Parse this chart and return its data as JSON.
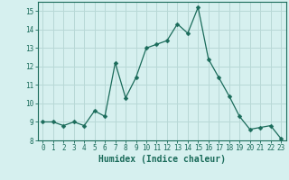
{
  "x": [
    0,
    1,
    2,
    3,
    4,
    5,
    6,
    7,
    8,
    9,
    10,
    11,
    12,
    13,
    14,
    15,
    16,
    17,
    18,
    19,
    20,
    21,
    22,
    23
  ],
  "y": [
    9.0,
    9.0,
    8.8,
    9.0,
    8.8,
    9.6,
    9.3,
    12.2,
    10.3,
    11.4,
    13.0,
    13.2,
    13.4,
    14.3,
    13.8,
    15.2,
    12.4,
    11.4,
    10.4,
    9.3,
    8.6,
    8.7,
    8.8,
    8.1
  ],
  "line_color": "#1a6b5a",
  "marker": "D",
  "marker_size": 2.5,
  "bg_color": "#d6f0ef",
  "grid_color": "#b8d8d6",
  "xlabel": "Humidex (Indice chaleur)",
  "xlim": [
    -0.5,
    23.5
  ],
  "ylim": [
    8.0,
    15.5
  ],
  "yticks": [
    8,
    9,
    10,
    11,
    12,
    13,
    14,
    15
  ],
  "xticks": [
    0,
    1,
    2,
    3,
    4,
    5,
    6,
    7,
    8,
    9,
    10,
    11,
    12,
    13,
    14,
    15,
    16,
    17,
    18,
    19,
    20,
    21,
    22,
    23
  ],
  "tick_label_fontsize": 5.5,
  "xlabel_fontsize": 7,
  "tick_color": "#1a6b5a",
  "axis_color": "#1a6b5a"
}
